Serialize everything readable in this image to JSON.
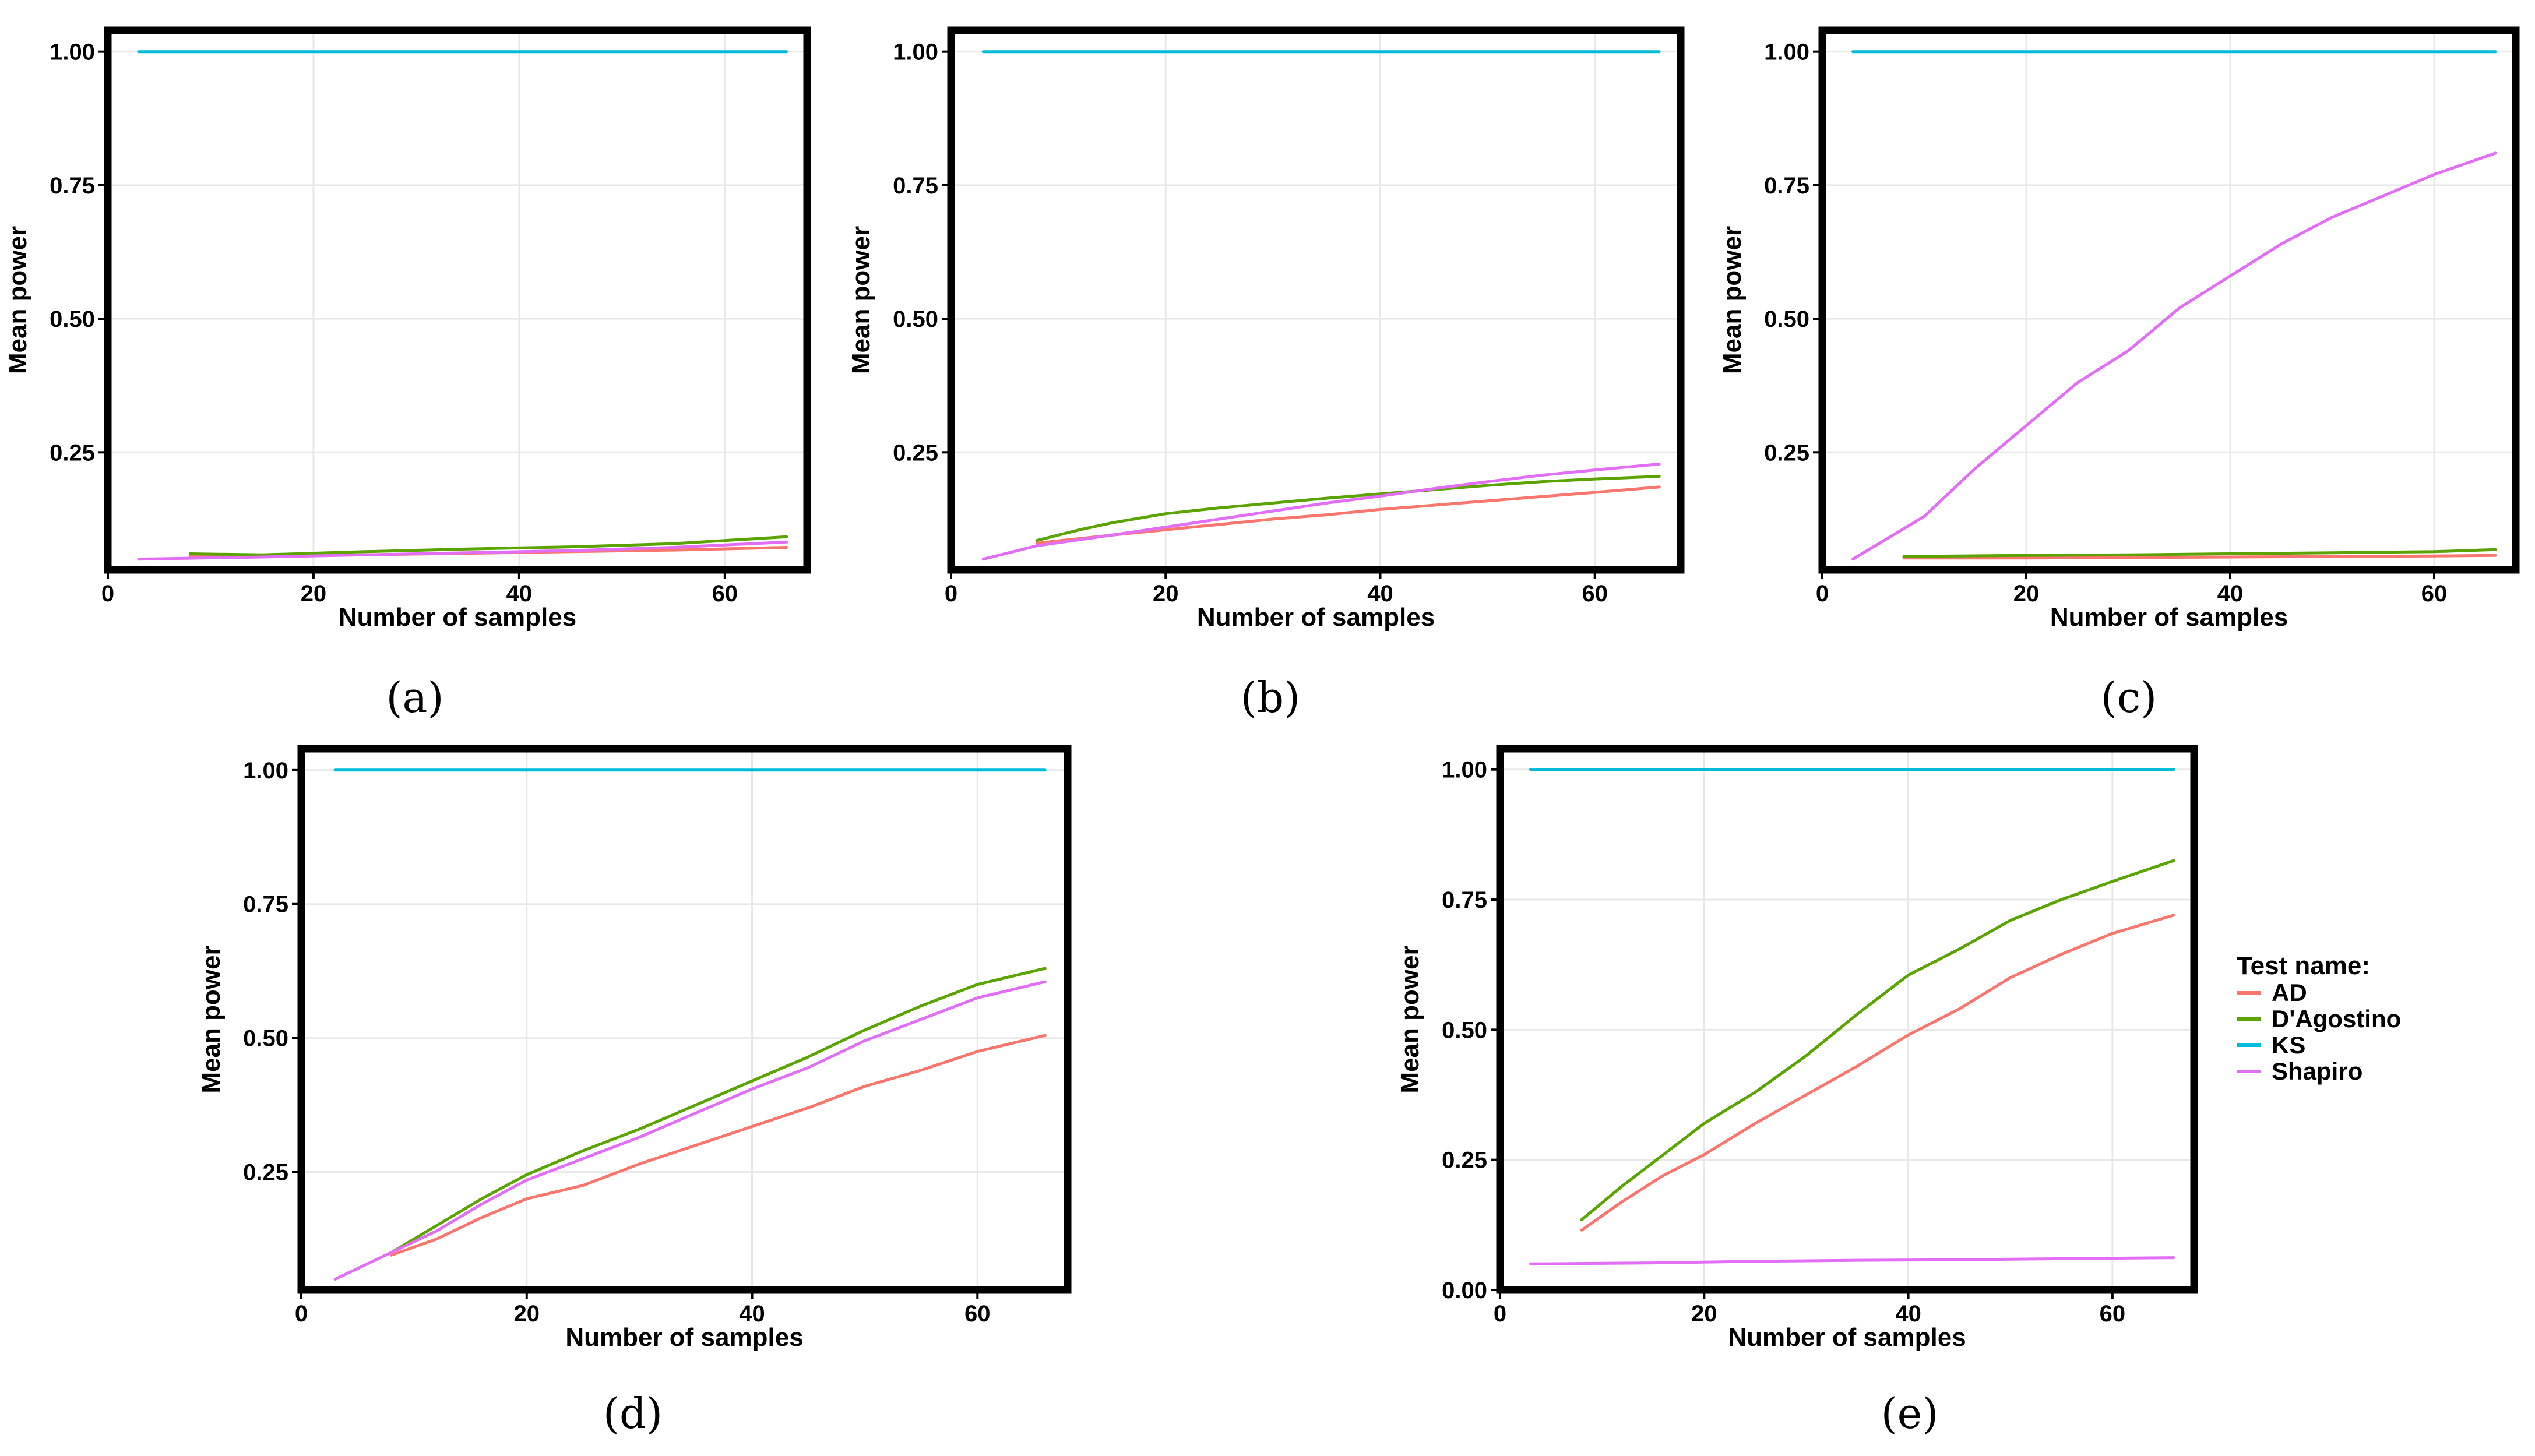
{
  "figure": {
    "colors": {
      "AD": "#F8766D",
      "D'Agostino": "#5BA300",
      "KS": "#00BCD8",
      "Shapiro": "#E36EF6",
      "frame": "#000000",
      "grid": "#E8E8E8"
    },
    "legend": {
      "title": "Test name:",
      "entries": [
        "AD",
        "D'Agostino",
        "KS",
        "Shapiro"
      ]
    }
  },
  "chart_data": [
    {
      "type": "line",
      "panel_label": "(a)",
      "xlabel": "Number of samples",
      "ylabel": "Mean power",
      "xlim": [
        0,
        68
      ],
      "ylim": [
        0.03,
        1.04
      ],
      "xticks": [
        0,
        20,
        40,
        60
      ],
      "yticks": [
        0.25,
        0.5,
        0.75,
        1.0
      ],
      "ytick_labels": [
        "0.25",
        "0.50",
        "0.75",
        "1.00"
      ],
      "series": [
        {
          "name": "KS",
          "x": [
            3,
            66
          ],
          "values": [
            1.0,
            1.0
          ]
        },
        {
          "name": "AD",
          "x": [
            8,
            15,
            25,
            35,
            45,
            55,
            66
          ],
          "values": [
            0.055,
            0.056,
            0.058,
            0.061,
            0.064,
            0.067,
            0.072
          ]
        },
        {
          "name": "D'Agostino",
          "x": [
            8,
            15,
            25,
            35,
            45,
            55,
            66
          ],
          "values": [
            0.06,
            0.058,
            0.064,
            0.069,
            0.073,
            0.079,
            0.092
          ]
        },
        {
          "name": "Shapiro",
          "x": [
            3,
            15,
            25,
            35,
            45,
            55,
            66
          ],
          "values": [
            0.05,
            0.054,
            0.058,
            0.062,
            0.066,
            0.072,
            0.082
          ]
        }
      ]
    },
    {
      "type": "line",
      "panel_label": "(b)",
      "xlabel": "Number of samples",
      "ylabel": "Mean power",
      "xlim": [
        0,
        68
      ],
      "ylim": [
        0.03,
        1.04
      ],
      "xticks": [
        0,
        20,
        40,
        60
      ],
      "yticks": [
        0.25,
        0.5,
        0.75,
        1.0
      ],
      "ytick_labels": [
        "0.25",
        "0.50",
        "0.75",
        "1.00"
      ],
      "series": [
        {
          "name": "KS",
          "x": [
            3,
            66
          ],
          "values": [
            1.0,
            1.0
          ]
        },
        {
          "name": "AD",
          "x": [
            8,
            15,
            20,
            25,
            30,
            35,
            40,
            45,
            50,
            55,
            60,
            66
          ],
          "values": [
            0.08,
            0.095,
            0.105,
            0.115,
            0.125,
            0.133,
            0.143,
            0.151,
            0.159,
            0.167,
            0.175,
            0.185
          ]
        },
        {
          "name": "D'Agostino",
          "x": [
            8,
            12,
            15,
            20,
            25,
            30,
            35,
            40,
            45,
            50,
            55,
            60,
            66
          ],
          "values": [
            0.085,
            0.105,
            0.118,
            0.135,
            0.146,
            0.155,
            0.164,
            0.172,
            0.18,
            0.188,
            0.195,
            0.2,
            0.205
          ]
        },
        {
          "name": "Shapiro",
          "x": [
            3,
            8,
            15,
            20,
            25,
            30,
            35,
            40,
            45,
            50,
            55,
            60,
            66
          ],
          "values": [
            0.05,
            0.075,
            0.095,
            0.11,
            0.125,
            0.14,
            0.155,
            0.168,
            0.182,
            0.195,
            0.207,
            0.217,
            0.228
          ]
        }
      ]
    },
    {
      "type": "line",
      "panel_label": "(c)",
      "xlabel": "Number of samples",
      "ylabel": "Mean power",
      "xlim": [
        0,
        68
      ],
      "ylim": [
        0.03,
        1.04
      ],
      "xticks": [
        0,
        20,
        40,
        60
      ],
      "yticks": [
        0.25,
        0.5,
        0.75,
        1.0
      ],
      "ytick_labels": [
        "0.25",
        "0.50",
        "0.75",
        "1.00"
      ],
      "series": [
        {
          "name": "KS",
          "x": [
            3,
            66
          ],
          "values": [
            1.0,
            1.0
          ]
        },
        {
          "name": "AD",
          "x": [
            8,
            20,
            30,
            40,
            50,
            60,
            66
          ],
          "values": [
            0.052,
            0.052,
            0.053,
            0.054,
            0.055,
            0.056,
            0.057
          ]
        },
        {
          "name": "D'Agostino",
          "x": [
            8,
            20,
            30,
            40,
            50,
            60,
            66
          ],
          "values": [
            0.055,
            0.057,
            0.058,
            0.06,
            0.062,
            0.064,
            0.068
          ]
        },
        {
          "name": "Shapiro",
          "x": [
            3,
            10,
            15,
            20,
            25,
            30,
            35,
            40,
            45,
            50,
            55,
            60,
            66
          ],
          "values": [
            0.05,
            0.13,
            0.22,
            0.3,
            0.38,
            0.44,
            0.52,
            0.58,
            0.64,
            0.69,
            0.73,
            0.77,
            0.81
          ]
        }
      ]
    },
    {
      "type": "line",
      "panel_label": "(d)",
      "xlabel": "Number of samples",
      "ylabel": "Mean power",
      "xlim": [
        0,
        68
      ],
      "ylim": [
        0.03,
        1.04
      ],
      "xticks": [
        0,
        20,
        40,
        60
      ],
      "yticks": [
        0.25,
        0.5,
        0.75,
        1.0
      ],
      "ytick_labels": [
        "0.25",
        "0.50",
        "0.75",
        "1.00"
      ],
      "series": [
        {
          "name": "KS",
          "x": [
            3,
            66
          ],
          "values": [
            1.0,
            1.0
          ]
        },
        {
          "name": "AD",
          "x": [
            8,
            12,
            16,
            20,
            25,
            30,
            35,
            40,
            45,
            50,
            55,
            60,
            66
          ],
          "values": [
            0.095,
            0.125,
            0.165,
            0.2,
            0.225,
            0.265,
            0.3,
            0.335,
            0.37,
            0.41,
            0.44,
            0.475,
            0.505
          ]
        },
        {
          "name": "D'Agostino",
          "x": [
            8,
            12,
            16,
            20,
            25,
            30,
            35,
            40,
            45,
            50,
            55,
            60,
            66
          ],
          "values": [
            0.1,
            0.15,
            0.2,
            0.245,
            0.29,
            0.33,
            0.375,
            0.42,
            0.465,
            0.515,
            0.56,
            0.6,
            0.63
          ]
        },
        {
          "name": "Shapiro",
          "x": [
            3,
            8,
            12,
            16,
            20,
            25,
            30,
            35,
            40,
            45,
            50,
            55,
            60,
            66
          ],
          "values": [
            0.05,
            0.1,
            0.14,
            0.19,
            0.235,
            0.275,
            0.315,
            0.36,
            0.405,
            0.445,
            0.495,
            0.535,
            0.575,
            0.605
          ]
        }
      ]
    },
    {
      "type": "line",
      "panel_label": "(e)",
      "xlabel": "Number of samples",
      "ylabel": "Mean power",
      "xlim": [
        0,
        68
      ],
      "ylim": [
        0.0,
        1.04
      ],
      "xticks": [
        0,
        20,
        40,
        60
      ],
      "yticks": [
        0.0,
        0.25,
        0.5,
        0.75,
        1.0
      ],
      "ytick_labels": [
        "0.00",
        "0.25",
        "0.50",
        "0.75",
        "1.00"
      ],
      "series": [
        {
          "name": "KS",
          "x": [
            3,
            66
          ],
          "values": [
            1.0,
            1.0
          ]
        },
        {
          "name": "AD",
          "x": [
            8,
            12,
            16,
            20,
            25,
            30,
            35,
            40,
            45,
            50,
            55,
            60,
            66
          ],
          "values": [
            0.115,
            0.17,
            0.22,
            0.26,
            0.32,
            0.375,
            0.43,
            0.49,
            0.54,
            0.6,
            0.645,
            0.685,
            0.72
          ]
        },
        {
          "name": "D'Agostino",
          "x": [
            8,
            12,
            16,
            20,
            25,
            30,
            35,
            40,
            45,
            50,
            55,
            60,
            66
          ],
          "values": [
            0.135,
            0.2,
            0.26,
            0.32,
            0.38,
            0.45,
            0.53,
            0.605,
            0.655,
            0.71,
            0.75,
            0.785,
            0.825
          ]
        },
        {
          "name": "Shapiro",
          "x": [
            3,
            15,
            25,
            35,
            45,
            55,
            66
          ],
          "values": [
            0.05,
            0.052,
            0.055,
            0.057,
            0.058,
            0.06,
            0.062
          ]
        }
      ]
    }
  ]
}
